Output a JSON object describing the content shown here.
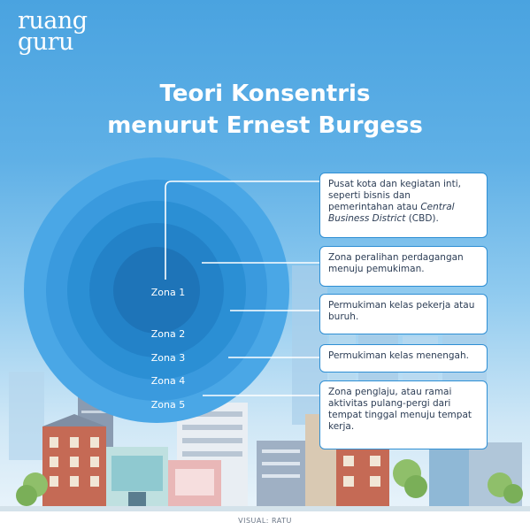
{
  "logo": {
    "line1": "ruang",
    "line2": "guru"
  },
  "title": {
    "line1": "Teori Konsentris",
    "line2": "menurut Ernest Burgess"
  },
  "zones": [
    {
      "label": "Zona 1"
    },
    {
      "label": "Zona 2"
    },
    {
      "label": "Zona 3"
    },
    {
      "label": "Zona 4"
    },
    {
      "label": "Zona 5"
    }
  ],
  "descriptions": [
    {
      "text_before": "Pusat kota dan kegiatan inti, seperti bisnis dan pemerintahan atau ",
      "italic": "Central Business District",
      "text_after": " (CBD)."
    },
    {
      "text": "Zona peralihan perdagangan menuju pemukiman."
    },
    {
      "text": "Permukiman kelas pekerja atau buruh."
    },
    {
      "text": "Permukiman kelas menengah."
    },
    {
      "text": "Zona penglaju, atau ramai aktivitas pulang-pergi dari tempat tinggal menuju tempat kerja."
    }
  ],
  "colors": {
    "ring1": "#1e74b8",
    "ring2": "#2382c8",
    "ring3": "#2b8fd4",
    "ring4": "#3a9ade",
    "ring5": "#4aa7e6",
    "box_border": "#2f8fd4"
  },
  "footer": {
    "credit": "VISUAL: RATU"
  }
}
